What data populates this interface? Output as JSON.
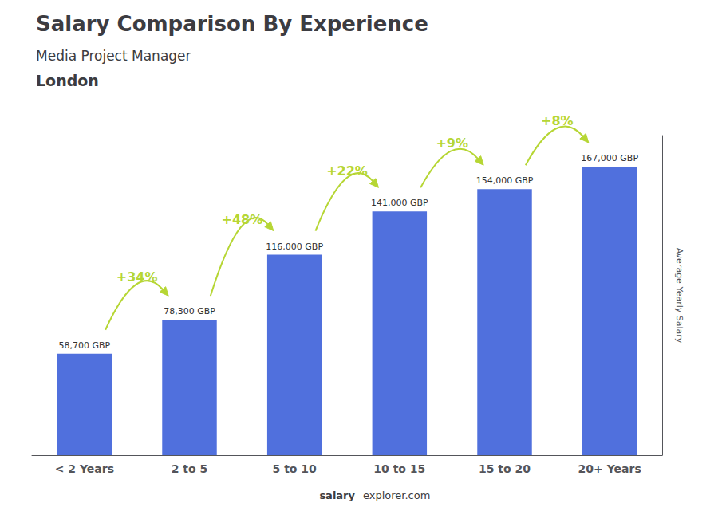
{
  "chart_data": {
    "type": "bar",
    "title": "Salary Comparison By Experience",
    "subtitle": "Media Project Manager",
    "ylabel": "Average Yearly Salary",
    "categories": [
      "< 2 Years",
      "2 to 5",
      "5 to 10",
      "10 to 15",
      "15 to 20",
      "20+ Years"
    ],
    "values": [
      58700,
      78300,
      116000,
      141000,
      154000,
      167000
    ],
    "value_labels": [
      "58,700 GBP",
      "78,300 GBP",
      "116,000 GBP",
      "141,000 GBP",
      "154,000 GBP",
      "167,000 GBP"
    ],
    "data_labels": true,
    "ylim": [
      0,
      185000
    ],
    "tick_labels": "x",
    "grid": false,
    "annotations": [
      {
        "text": "London"
      },
      {
        "text": "salary"
      },
      {
        "text": "explorer.com"
      },
      {
        "text": "+34%",
        "from": "< 2 Years",
        "to": "2 to 5"
      },
      {
        "text": "+48%",
        "from": "2 to 5",
        "to": "5 to 10"
      },
      {
        "text": "+22%",
        "from": "5 to 10",
        "to": "10 to 15"
      },
      {
        "text": "+9%",
        "from": "10 to 15",
        "to": "15 to 20"
      },
      {
        "text": "+8%",
        "from": "15 to 20",
        "to": "20+ Years"
      }
    ]
  }
}
